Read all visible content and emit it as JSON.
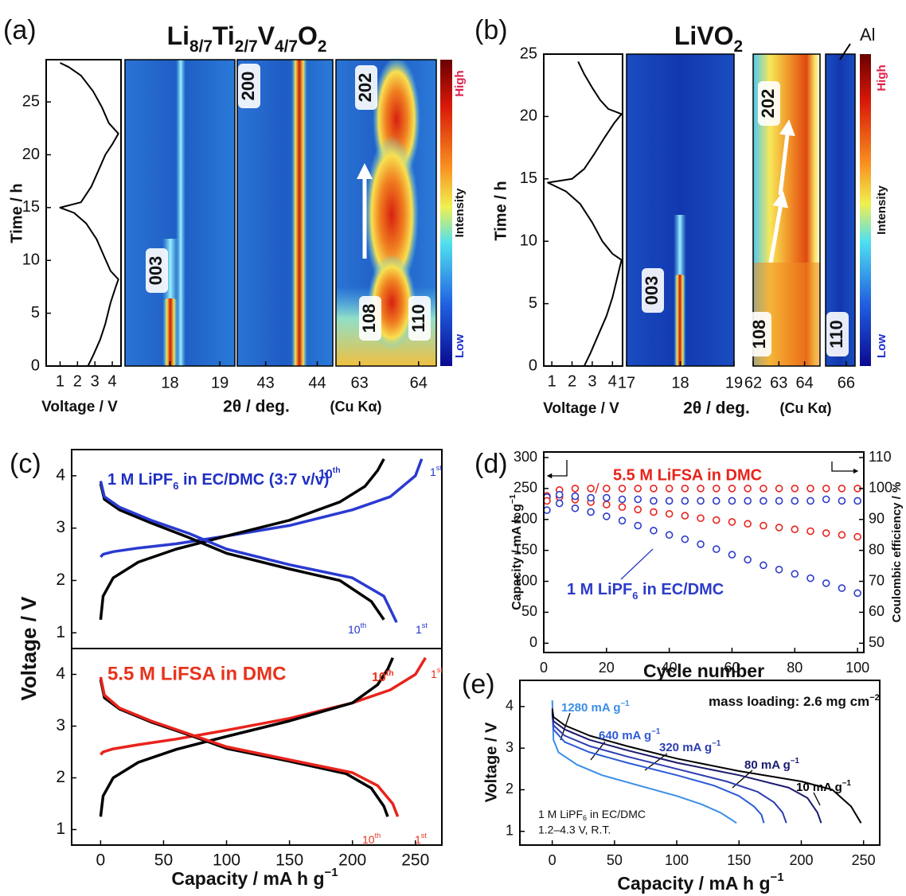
{
  "chart_data": [
    {
      "type": "line",
      "panel": "(a)",
      "title": [
        "Li",
        {
          "sub": "8/7"
        },
        "Ti",
        {
          "sub": "2/7"
        },
        "V",
        {
          "sub": "4/7"
        },
        "O",
        {
          "sub": "2"
        }
      ],
      "x": [
        2.6,
        2.9,
        3.3,
        3.6,
        3.9,
        4.2,
        4.35,
        3.9,
        3.5,
        3.1,
        2.5,
        1.8,
        1.0,
        2.2,
        2.8,
        3.2,
        3.6,
        4.0,
        4.35,
        3.8,
        3.4,
        2.9,
        2.2,
        1.5,
        1.0
      ],
      "series": [
        {
          "color": "#000000",
          "values": [
            0,
            1,
            2.5,
            4,
            6,
            7.5,
            8.2,
            9,
            10.5,
            12,
            13.5,
            14.5,
            15,
            15.5,
            17,
            18.5,
            20,
            21,
            22,
            23,
            24.5,
            26,
            27.5,
            28.3,
            28.7
          ]
        }
      ],
      "xlim": [
        0.2,
        4.5
      ],
      "xticks": [
        1,
        2,
        3,
        4
      ],
      "ylim": [
        0,
        29
      ],
      "yticks": [
        0,
        5,
        10,
        15,
        20,
        25
      ],
      "xlabel": "Voltage  /  V",
      "ylabel": "Time  /  h"
    },
    {
      "type": "heatmap",
      "xlabel": "2θ / deg.",
      "xlabel_note": "(Cu Kα)",
      "colorbar": [
        "High",
        "Intensity",
        "Low"
      ],
      "panels": [
        {
          "xlim": [
            17.1,
            19.3
          ],
          "xticks": [
            18,
            19
          ],
          "peaks": [
            "003"
          ]
        },
        {
          "xlim": [
            42.45,
            44.3
          ],
          "xticks": [
            43,
            44
          ],
          "peaks": [
            "200"
          ]
        },
        {
          "xlim": [
            62.6,
            64.3
          ],
          "xticks": [
            63,
            64
          ],
          "peaks": [
            "202",
            "108",
            "110"
          ]
        }
      ]
    },
    {
      "type": "line",
      "panel": "(b)",
      "title": [
        "LiVO",
        {
          "sub": "2"
        }
      ],
      "x": [
        2.6,
        2.9,
        3.3,
        3.7,
        4.0,
        4.3,
        4.45,
        4.0,
        3.5,
        3.0,
        2.4,
        1.7,
        0.8,
        2.0,
        2.6,
        3.1,
        3.6,
        4.1,
        4.45,
        3.8,
        3.4,
        3.0,
        2.6,
        2.3
      ],
      "series": [
        {
          "color": "#000000",
          "values": [
            0,
            1,
            2.5,
            4,
            5.5,
            7.5,
            8.5,
            9,
            10,
            11.5,
            13,
            14,
            14.7,
            15,
            15.8,
            17,
            18.3,
            19.5,
            20.2,
            20.6,
            21.3,
            22.3,
            23.4,
            24.4
          ]
        }
      ],
      "xlim": [
        0.6,
        4.5
      ],
      "xticks": [
        1,
        2,
        3,
        4
      ],
      "ylim": [
        0,
        25
      ],
      "yticks": [
        0,
        5,
        10,
        15,
        20,
        25
      ],
      "xlabel": "Voltage  /  V",
      "ylabel": "Time  /  h"
    },
    {
      "type": "heatmap",
      "xlabel": "2θ / deg.",
      "xlabel_note": "(Cu Kα)",
      "colorbar": [
        "High",
        "Intensity",
        "Low"
      ],
      "annotations": [
        "Al"
      ],
      "panels": [
        {
          "xlim": [
            17,
            19
          ],
          "xticks": [
            17,
            18,
            19
          ],
          "peaks": [
            "003"
          ]
        },
        {
          "xlim": [
            62,
            64.6
          ],
          "xticks": [
            62,
            63,
            64
          ],
          "peaks": [
            "202",
            "108"
          ]
        },
        {
          "xlim": [
            65.3,
            66.3
          ],
          "xticks": [
            66
          ],
          "peaks": [
            "110"
          ]
        }
      ]
    },
    {
      "type": "line",
      "panel": "(c)",
      "label": [
        "1 M LiPF",
        {
          "sub": "6"
        },
        " in EC/DMC (3:7 v/v)"
      ],
      "label_color": "#1f2fc4",
      "annotations": [
        [
          "10",
          {
            "sup": "th"
          }
        ],
        [
          "1",
          {
            "sup": "st"
          }
        ],
        [
          "10",
          {
            "sup": "th"
          }
        ],
        [
          "1",
          {
            "sup": "st"
          }
        ]
      ],
      "annotation_color": "#2233cc",
      "series": [
        {
          "color": "#2a3ad0",
          "x": [
            0,
            2,
            10,
            30,
            60,
            100,
            150,
            200,
            230,
            250,
            255
          ],
          "values": [
            2.45,
            2.5,
            2.55,
            2.62,
            2.7,
            2.85,
            3.05,
            3.35,
            3.6,
            4.0,
            4.32
          ]
        },
        {
          "color": "#000000",
          "x": [
            0,
            2,
            10,
            30,
            60,
            100,
            150,
            190,
            210,
            220,
            225
          ],
          "values": [
            1.25,
            1.7,
            2.05,
            2.35,
            2.6,
            2.85,
            3.15,
            3.5,
            3.8,
            4.1,
            4.32
          ]
        },
        {
          "color": "#000000",
          "x": [
            0,
            3,
            15,
            40,
            70,
            100,
            150,
            190,
            215,
            225
          ],
          "values": [
            3.85,
            3.55,
            3.35,
            3.1,
            2.82,
            2.52,
            2.22,
            2.0,
            1.6,
            1.25
          ]
        },
        {
          "color": "#2a3ad0",
          "x": [
            0,
            3,
            15,
            40,
            70,
            100,
            150,
            200,
            225,
            235
          ],
          "values": [
            3.9,
            3.6,
            3.4,
            3.15,
            2.9,
            2.6,
            2.3,
            2.05,
            1.7,
            1.2
          ]
        }
      ],
      "xlim": [
        -23,
        271
      ],
      "ylim": [
        0.7,
        4.5
      ],
      "yticks": [
        1,
        2,
        3,
        4
      ],
      "ylabel": "Voltage  /  V"
    },
    {
      "type": "line",
      "label": "5.5 M LiFSA in DMC",
      "label_color": "#e8321c",
      "annotations": [
        [
          "10",
          {
            "sup": "th"
          }
        ],
        [
          "1",
          {
            "sup": "st"
          }
        ],
        [
          "10",
          {
            "sup": "th"
          }
        ],
        [
          "1",
          {
            "sup": "st"
          }
        ]
      ],
      "annotation_color": "#e8321c",
      "series": [
        {
          "color": "#e8231c",
          "x": [
            0,
            2,
            10,
            30,
            60,
            100,
            150,
            200,
            230,
            250,
            258
          ],
          "values": [
            2.45,
            2.5,
            2.56,
            2.64,
            2.75,
            2.92,
            3.15,
            3.45,
            3.7,
            4.0,
            4.32
          ]
        },
        {
          "color": "#000000",
          "x": [
            0,
            2,
            10,
            30,
            60,
            100,
            150,
            200,
            220,
            228,
            232
          ],
          "values": [
            1.25,
            1.65,
            2.0,
            2.3,
            2.55,
            2.8,
            3.1,
            3.45,
            3.8,
            4.1,
            4.32
          ]
        },
        {
          "color": "#000000",
          "x": [
            0,
            3,
            15,
            40,
            70,
            100,
            150,
            195,
            215,
            225,
            228
          ],
          "values": [
            3.9,
            3.55,
            3.33,
            3.08,
            2.83,
            2.57,
            2.32,
            2.08,
            1.8,
            1.45,
            1.25
          ]
        },
        {
          "color": "#e8231c",
          "x": [
            0,
            3,
            15,
            40,
            70,
            100,
            150,
            200,
            220,
            232,
            236
          ],
          "values": [
            3.95,
            3.6,
            3.35,
            3.1,
            2.85,
            2.6,
            2.35,
            2.1,
            1.85,
            1.5,
            1.25
          ]
        }
      ],
      "xlim": [
        -23,
        271
      ],
      "xticks": [
        0,
        50,
        100,
        150,
        200,
        250
      ],
      "ylim": [
        0.7,
        4.5
      ],
      "yticks": [
        1,
        2,
        3,
        4
      ],
      "xlabel": [
        "Capacity  /  mA h g",
        {
          "sup": "−1"
        }
      ]
    },
    {
      "type": "scatter",
      "panel": "(d)",
      "markers": "hollow",
      "x": [
        1,
        5,
        10,
        15,
        20,
        25,
        30,
        35,
        40,
        45,
        50,
        55,
        60,
        65,
        70,
        75,
        80,
        85,
        90,
        95,
        100
      ],
      "series": [
        {
          "name": "5.5 M LiFSA in DMC",
          "color": "#e8231c",
          "values": [
            238,
            236,
            232,
            228,
            224,
            220,
            216,
            212,
            209,
            206,
            202,
            199,
            196,
            193,
            190,
            187,
            184,
            181,
            178,
            175,
            172
          ]
        },
        {
          "name": [
            "1 M LiPF",
            {
              "sub": "6"
            },
            " in EC/DMC"
          ],
          "color": "#2c3cc8",
          "values": [
            236,
            226,
            218,
            212,
            205,
            198,
            190,
            182,
            175,
            168,
            160,
            152,
            143,
            135,
            126,
            119,
            112,
            105,
            97,
            89,
            81
          ]
        },
        {
          "color": "#e8231c",
          "axis": "y2",
          "values": [
            96,
            99.5,
            100,
            100,
            100,
            100,
            100,
            100,
            100,
            100,
            100,
            100,
            100,
            100,
            100,
            100,
            100,
            100,
            100,
            100,
            100
          ]
        },
        {
          "color": "#2c3cc8",
          "axis": "y2",
          "values": [
            93,
            98,
            97.5,
            97,
            97,
            96.5,
            96.5,
            96,
            96,
            96,
            96,
            96,
            96,
            96,
            96,
            96,
            96,
            96,
            96.5,
            96,
            96
          ]
        }
      ],
      "xlim": [
        0,
        102
      ],
      "xticks": [
        0,
        20,
        40,
        60,
        80,
        100
      ],
      "ylim": [
        -15,
        309
      ],
      "yticks": [
        0,
        50,
        100,
        150,
        200,
        250,
        300
      ],
      "y2lim": [
        47,
        111.8
      ],
      "y2ticks": [
        50,
        60,
        70,
        80,
        90,
        100,
        110
      ],
      "xlabel": "Cycle number",
      "ylabel": [
        "Capacity  /  mA h g",
        {
          "sup": "−1"
        }
      ],
      "y2label": "Coulombic efficiency / %"
    },
    {
      "type": "line",
      "panel": "(e)",
      "annotations": [
        [
          "mass loading: 2.6 mg cm",
          {
            "sup": "−2"
          }
        ],
        [
          "1 M LiPF",
          {
            "sub": "6"
          },
          " in EC/DMC"
        ],
        "1.2–4.3 V, R.T."
      ],
      "series": [
        {
          "name": [
            "1280 mA g",
            {
              "sup": "−1"
            }
          ],
          "color": "#3a8ee6",
          "x": [
            0,
            1,
            5,
            20,
            40,
            70,
            100,
            120,
            135,
            143,
            148
          ],
          "values": [
            4.15,
            3.2,
            2.9,
            2.6,
            2.35,
            2.1,
            1.85,
            1.65,
            1.45,
            1.3,
            1.2
          ]
        },
        {
          "name": [
            "640 mA g",
            {
              "sup": "−1"
            }
          ],
          "color": "#2d5bd6",
          "x": [
            0,
            1,
            10,
            30,
            60,
            100,
            130,
            150,
            162,
            168,
            170
          ],
          "values": [
            3.9,
            3.45,
            3.15,
            2.9,
            2.65,
            2.35,
            2.1,
            1.85,
            1.6,
            1.4,
            1.2
          ]
        },
        {
          "name": [
            "320 mA g",
            {
              "sup": "−1"
            }
          ],
          "color": "#2e3db0",
          "x": [
            0,
            1,
            10,
            30,
            60,
            100,
            140,
            165,
            178,
            185,
            188
          ],
          "values": [
            3.8,
            3.55,
            3.3,
            3.05,
            2.8,
            2.5,
            2.2,
            1.95,
            1.7,
            1.45,
            1.2
          ]
        },
        {
          "name": [
            "80 mA g",
            {
              "sup": "−1"
            }
          ],
          "color": "#1a1a6e",
          "x": [
            0,
            1,
            10,
            30,
            60,
            100,
            150,
            190,
            205,
            213,
            216
          ],
          "values": [
            3.85,
            3.65,
            3.45,
            3.2,
            2.95,
            2.65,
            2.35,
            2.05,
            1.8,
            1.45,
            1.2
          ]
        },
        {
          "name": [
            "10 mA g",
            {
              "sup": "−1"
            }
          ],
          "color": "#000000",
          "x": [
            0,
            1,
            10,
            30,
            60,
            100,
            150,
            200,
            225,
            240,
            248
          ],
          "values": [
            3.95,
            3.75,
            3.55,
            3.3,
            3.05,
            2.75,
            2.45,
            2.2,
            2.0,
            1.6,
            1.2
          ]
        }
      ],
      "xlim": [
        -26,
        263
      ],
      "xticks": [
        0,
        50,
        100,
        150,
        200,
        250
      ],
      "ylim": [
        0.67,
        4.63
      ],
      "yticks": [
        1,
        2,
        3,
        4
      ],
      "xlabel": [
        "Capacity  /  mA h g",
        {
          "sup": "−1"
        }
      ],
      "ylabel": "Voltage  /  V"
    }
  ]
}
